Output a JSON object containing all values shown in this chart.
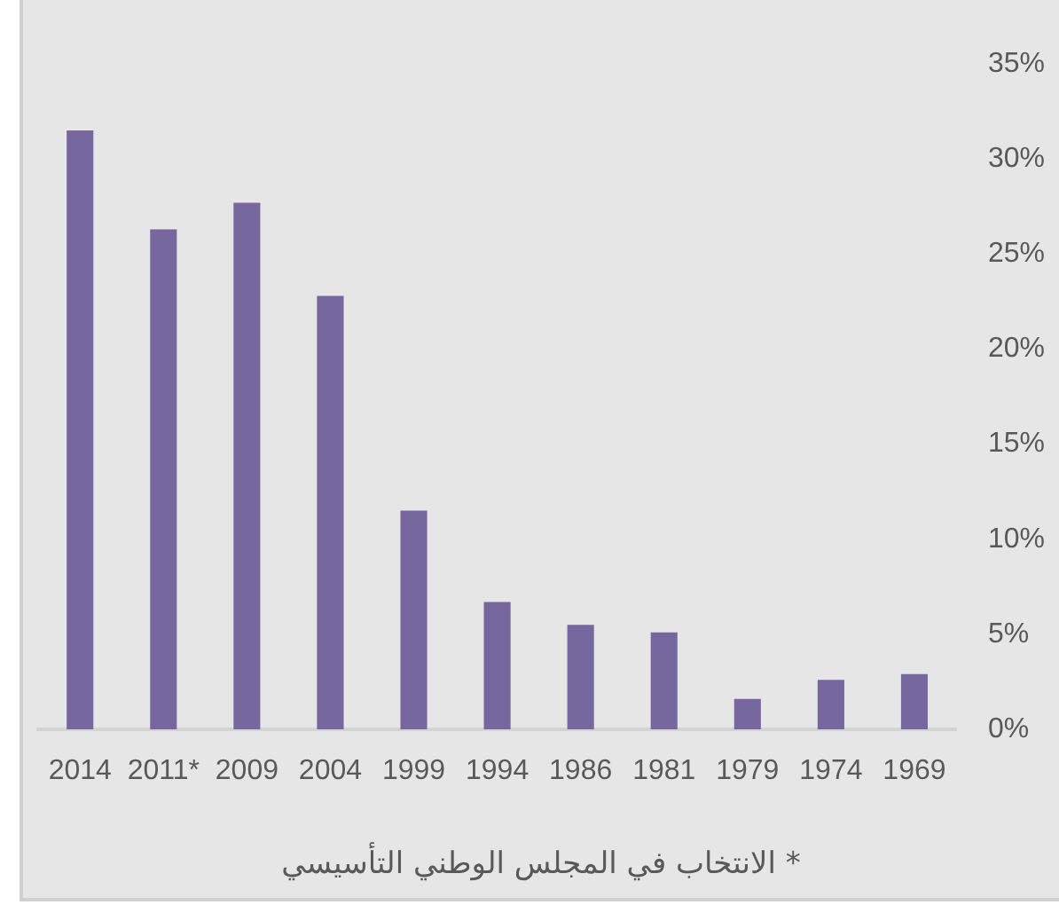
{
  "chart_data": {
    "type": "bar",
    "categories": [
      "2014",
      "2011*",
      "2009",
      "2004",
      "1999",
      "1994",
      "1986",
      "1981",
      "1979",
      "1974",
      "1969"
    ],
    "values": [
      31.5,
      26.3,
      27.7,
      22.8,
      11.5,
      6.7,
      5.5,
      5.1,
      1.6,
      2.6,
      2.9
    ],
    "color": "#76679e",
    "ylim": [
      0,
      35
    ],
    "yticks": [
      {
        "value": 0,
        "label": "0%"
      },
      {
        "value": 5,
        "label": "5%"
      },
      {
        "value": 10,
        "label": "10%"
      },
      {
        "value": 15,
        "label": "15%"
      },
      {
        "value": 20,
        "label": "20%"
      },
      {
        "value": 25,
        "label": "25%"
      },
      {
        "value": 30,
        "label": "30%"
      },
      {
        "value": 35,
        "label": "35%"
      }
    ],
    "annotations": [
      "* الانتخاب في المجلس الوطني التأسيسي"
    ]
  }
}
